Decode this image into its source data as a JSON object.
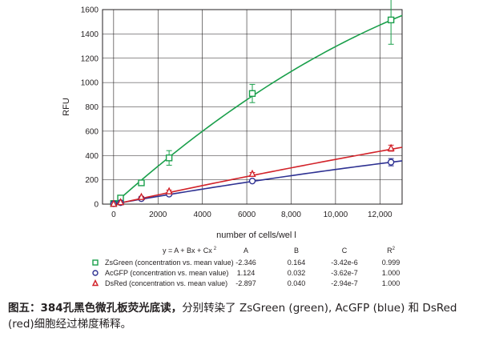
{
  "chart_data": {
    "type": "scatter",
    "xlabel": "number of cells/wel l",
    "ylabel": "RFU",
    "xlim": [
      -500,
      13000
    ],
    "ylim": [
      0,
      1600
    ],
    "x_ticks": [
      0,
      2000,
      4000,
      6000,
      8000,
      10000,
      12000
    ],
    "x_tick_labels": [
      "0",
      "2000",
      "4000",
      "6000",
      "8,000",
      "10,000",
      "12,000"
    ],
    "y_ticks": [
      0,
      200,
      400,
      600,
      800,
      1000,
      1200,
      1400,
      1600
    ],
    "y_tick_labels": [
      "0",
      "200",
      "400",
      "600",
      "800",
      "1000",
      "1200",
      "1400",
      "1600"
    ],
    "grid": true,
    "legend_position": "bottom",
    "series": [
      {
        "name": "ZsGreen (concentration vs. mean value)",
        "color": "#1a9f4b",
        "marker": "square",
        "x": [
          0,
          313,
          1250,
          2500,
          6250,
          12500
        ],
        "y": [
          5,
          50,
          175,
          380,
          910,
          1515
        ],
        "err": [
          0,
          8,
          15,
          60,
          75,
          200
        ],
        "fit": {
          "A": -2.346,
          "B": 0.164,
          "C": -3.42e-06
        }
      },
      {
        "name": "AcGFP (concentration vs. mean value)",
        "color": "#2e3192",
        "marker": "circle",
        "x": [
          0,
          313,
          1250,
          2500,
          6250,
          12500
        ],
        "y": [
          3,
          12,
          45,
          82,
          190,
          345
        ],
        "err": [
          0,
          3,
          5,
          8,
          10,
          30
        ],
        "fit": {
          "A": 1.124,
          "B": 0.032,
          "C": -3.62e-07
        }
      },
      {
        "name": "DsRed (concentration vs. mean value)",
        "color": "#d2232a",
        "marker": "triangle",
        "x": [
          0,
          313,
          1250,
          2500,
          6250,
          12500
        ],
        "y": [
          2,
          15,
          58,
          105,
          248,
          460
        ],
        "err": [
          0,
          3,
          6,
          10,
          12,
          25
        ],
        "fit": {
          "A": -2.897,
          "B": 0.04,
          "C": -2.94e-07
        }
      }
    ],
    "fit_table": {
      "equation": "y = A + Bx + Cx",
      "equation_exponent": "2",
      "headers": [
        "A",
        "B",
        "C",
        "R"
      ],
      "r_exponent": "2",
      "rows": [
        {
          "name": "ZsGreen (concentration vs. mean value)",
          "values": [
            "-2.346",
            "0.164",
            "-3.42e-6",
            "0.999"
          ]
        },
        {
          "name": "AcGFP (concentration vs. mean value)",
          "values": [
            "1.124",
            "0.032",
            "-3.62e-7",
            "1.000"
          ]
        },
        {
          "name": "DsRed (concentration vs. mean value)",
          "values": [
            "-2.897",
            "0.040",
            "-2.94e-7",
            "1.000"
          ]
        }
      ]
    }
  },
  "caption": {
    "lead": "图五：384孔黑色微孔板荧光底读，",
    "text": "分别转染了 ZsGreen (green), AcGFP (blue) 和 DsRed (red)细胞经过梯度稀释。"
  }
}
